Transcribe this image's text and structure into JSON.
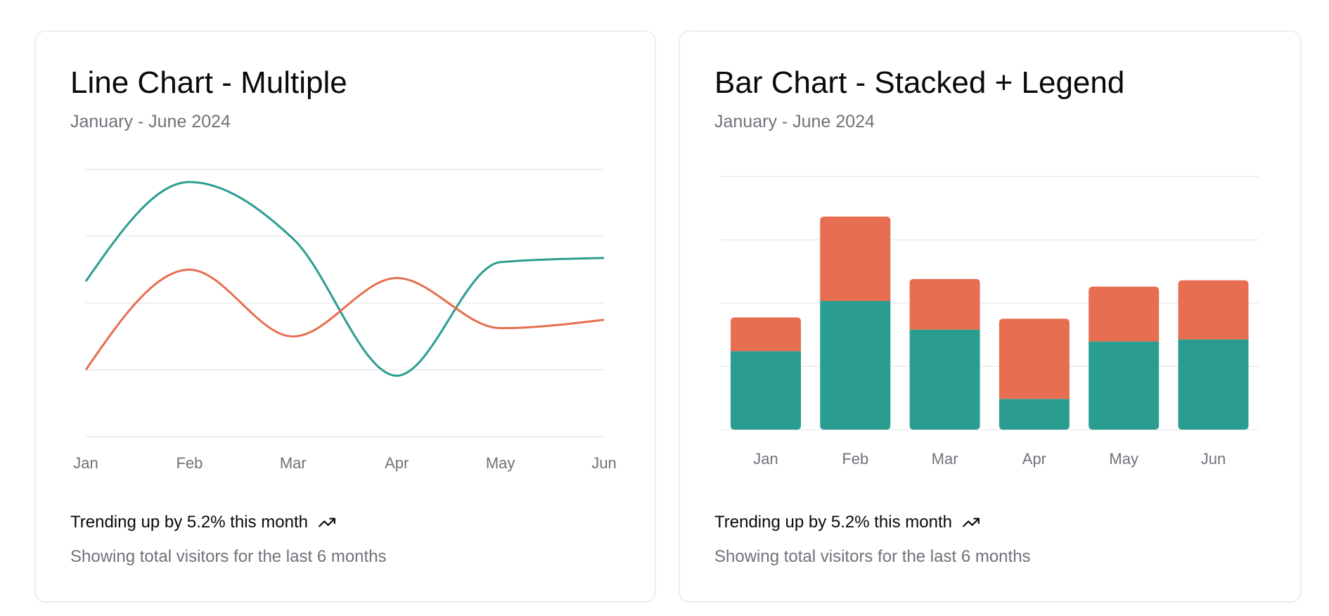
{
  "cards": [
    {
      "title": "Line Chart - Multiple",
      "subtitle": "January - June 2024",
      "footer_trend": "Trending up by 5.2% this month",
      "footer_note": "Showing total visitors for the last 6 months",
      "trend_icon": "trending-up-icon"
    },
    {
      "title": "Bar Chart - Stacked + Legend",
      "subtitle": "January - June 2024",
      "footer_trend": "Trending up by 5.2% this month",
      "footer_note": "Showing total visitors for the last 6 months",
      "trend_icon": "trending-up-icon"
    }
  ],
  "colors": {
    "series1": "#2a9d90",
    "series2": "#e76e50",
    "grid": "#ececee",
    "tick": "#71717a"
  },
  "chart_data": [
    {
      "type": "line",
      "categories": [
        "Jan",
        "Feb",
        "Mar",
        "Apr",
        "May",
        "Jun"
      ],
      "series": [
        {
          "values": [
            186,
            305,
            237,
            73,
            209,
            214
          ],
          "color": "#2a9d90"
        },
        {
          "values": [
            80,
            200,
            120,
            190,
            130,
            140
          ],
          "color": "#e76e50"
        }
      ],
      "ylim": [
        0,
        320
      ],
      "grid": true,
      "y_axis_visible": false
    },
    {
      "type": "bar",
      "stacked": true,
      "categories": [
        "Jan",
        "Feb",
        "Mar",
        "Apr",
        "May",
        "Jun"
      ],
      "series": [
        {
          "values": [
            186,
            305,
            237,
            73,
            209,
            214
          ],
          "color": "#2a9d90"
        },
        {
          "values": [
            80,
            200,
            120,
            190,
            130,
            140
          ],
          "color": "#e76e50"
        }
      ],
      "ylim": [
        0,
        600
      ],
      "grid": true,
      "y_axis_visible": false
    }
  ]
}
